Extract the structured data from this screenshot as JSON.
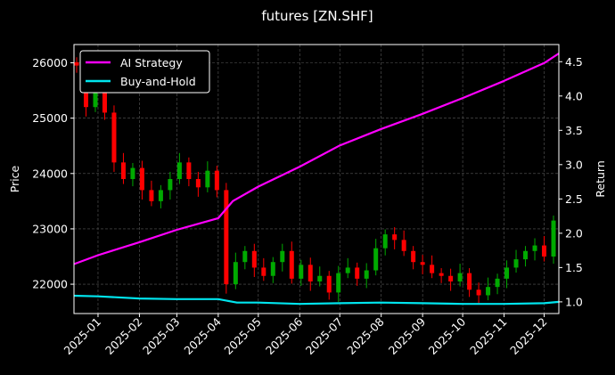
{
  "chart_data": {
    "type": "line",
    "title": "futures [ZN.SHF]",
    "ylabel_left": "Price",
    "ylabel_right": "Return",
    "x_range": [
      "2024-12-14",
      "2025-12-12"
    ],
    "x_ticks": [
      "2025-01",
      "2025-02",
      "2025-03",
      "2025-04",
      "2025-05",
      "2025-06",
      "2025-07",
      "2025-08",
      "2025-09",
      "2025-10",
      "2025-11",
      "2025-12"
    ],
    "ylim_left": [
      21470,
      26330
    ],
    "yticks_left": [
      22000,
      23000,
      24000,
      25000,
      26000
    ],
    "ylim_right": [
      0.83,
      4.75
    ],
    "yticks_right": [
      1.0,
      1.5,
      2.0,
      2.5,
      3.0,
      3.5,
      4.0,
      4.5
    ],
    "grid": true,
    "legend_position": "top-left",
    "candle_colors": {
      "up": "#00aa00",
      "down": "#ff0000"
    },
    "price_series": {
      "name": "ZN.SHF",
      "dates": [
        "2024-12-16",
        "2024-12-23",
        "2024-12-30",
        "2025-01-06",
        "2025-01-13",
        "2025-01-20",
        "2025-01-27",
        "2025-02-03",
        "2025-02-10",
        "2025-02-17",
        "2025-02-24",
        "2025-03-03",
        "2025-03-10",
        "2025-03-17",
        "2025-03-24",
        "2025-03-31",
        "2025-04-07",
        "2025-04-14",
        "2025-04-21",
        "2025-04-28",
        "2025-05-05",
        "2025-05-12",
        "2025-05-19",
        "2025-05-26",
        "2025-06-02",
        "2025-06-09",
        "2025-06-16",
        "2025-06-23",
        "2025-06-30",
        "2025-07-07",
        "2025-07-14",
        "2025-07-21",
        "2025-07-28",
        "2025-08-04",
        "2025-08-11",
        "2025-08-18",
        "2025-08-25",
        "2025-09-01",
        "2025-09-08",
        "2025-09-15",
        "2025-09-22",
        "2025-09-29",
        "2025-10-06",
        "2025-10-13",
        "2025-10-20",
        "2025-10-27",
        "2025-11-03",
        "2025-11-10",
        "2025-11-17",
        "2025-11-24",
        "2025-12-01",
        "2025-12-08"
      ],
      "close": [
        25950,
        25200,
        25600,
        25100,
        24200,
        23900,
        24100,
        23700,
        23500,
        23700,
        23900,
        24200,
        23900,
        23750,
        24050,
        23700,
        22000,
        22400,
        22600,
        22300,
        22150,
        22400,
        22600,
        22100,
        22350,
        22050,
        22150,
        21850,
        22200,
        22300,
        22100,
        22250,
        22650,
        22900,
        22800,
        22600,
        22400,
        22350,
        22200,
        22150,
        22050,
        22200,
        21900,
        21800,
        21950,
        22100,
        22300,
        22450,
        22600,
        22700,
        22500,
        23150
      ]
    },
    "series": [
      {
        "name": "AI Strategy",
        "color": "#ff00ff",
        "dates": [
          "2024-12-14",
          "2025-01-01",
          "2025-02-01",
          "2025-03-01",
          "2025-04-01",
          "2025-04-12",
          "2025-05-01",
          "2025-06-01",
          "2025-07-01",
          "2025-08-01",
          "2025-09-01",
          "2025-10-01",
          "2025-11-01",
          "2025-12-01",
          "2025-12-12"
        ],
        "values": [
          1.55,
          1.68,
          1.87,
          2.05,
          2.22,
          2.47,
          2.68,
          2.97,
          3.28,
          3.52,
          3.74,
          3.97,
          4.22,
          4.48,
          4.62
        ]
      },
      {
        "name": "Buy-and-Hold",
        "color": "#00e5ee",
        "dates": [
          "2024-12-14",
          "2025-01-01",
          "2025-02-01",
          "2025-03-01",
          "2025-04-01",
          "2025-04-15",
          "2025-05-01",
          "2025-06-01",
          "2025-07-01",
          "2025-08-01",
          "2025-09-01",
          "2025-10-01",
          "2025-11-01",
          "2025-12-01",
          "2025-12-12"
        ],
        "values": [
          1.09,
          1.08,
          1.05,
          1.04,
          1.04,
          0.99,
          0.99,
          0.97,
          0.98,
          0.99,
          0.98,
          0.97,
          0.97,
          0.98,
          1.0
        ]
      }
    ]
  }
}
